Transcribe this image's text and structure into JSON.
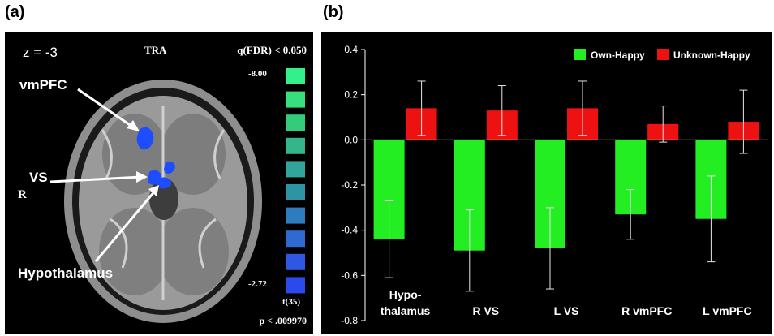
{
  "figure": {
    "panel_a_label": "(a)",
    "panel_b_label": "(b)"
  },
  "brain_panel": {
    "slice": "z = -3",
    "view": "TRA",
    "threshold": "q(FDR) < 0.050",
    "scale_max": "-8.00",
    "scale_min": "-2.72",
    "stat_label": "t(35)",
    "p_value": "p < .009970",
    "side": "R",
    "annotations": [
      "vmPFC",
      "VS",
      "Hypothalamus"
    ],
    "scale_colors": [
      "#33f08a",
      "#37e07c",
      "#34cc7a",
      "#33b78a",
      "#31a59a",
      "#2f93a6",
      "#2d7cbe",
      "#2e6ad2",
      "#2f57e4",
      "#2a4af0"
    ]
  },
  "chart_data": {
    "type": "bar",
    "categories": [
      "Hypo-\nthalamus",
      "R VS",
      "L VS",
      "R vmPFC",
      "L vmPFC"
    ],
    "series": [
      {
        "name": "Own-Happy",
        "color": "#22ee22",
        "values": [
          -0.44,
          -0.49,
          -0.48,
          -0.33,
          -0.35
        ],
        "errors": [
          0.17,
          0.18,
          0.18,
          0.11,
          0.19
        ]
      },
      {
        "name": "Unknown-Happy",
        "color": "#ee1111",
        "values": [
          0.14,
          0.13,
          0.14,
          0.07,
          0.08
        ],
        "errors": [
          0.12,
          0.11,
          0.12,
          0.08,
          0.14
        ]
      }
    ],
    "ylim": [
      -0.8,
      0.4
    ],
    "yticks": [
      "0.4",
      "0.2",
      "0.0",
      "-0.2",
      "-0.4",
      "-0.6",
      "-0.8"
    ],
    "xlabel": "",
    "ylabel": "",
    "grid": false,
    "legend": "top-right",
    "background": "#000000"
  }
}
